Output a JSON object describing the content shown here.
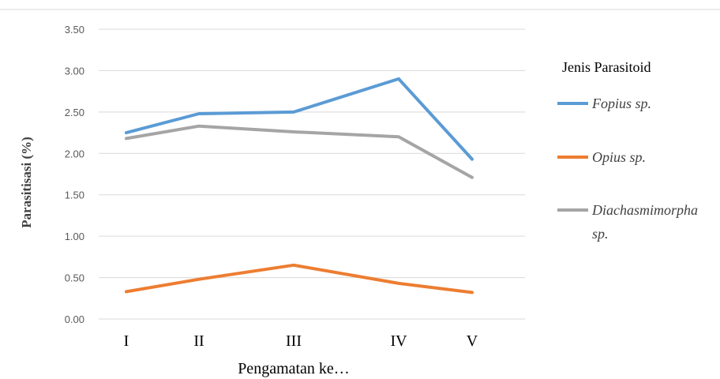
{
  "chart_data": {
    "type": "line",
    "categories": [
      "I",
      "II",
      "III",
      "IV",
      "V"
    ],
    "series": [
      {
        "name": "Fopius sp.",
        "values": [
          2.25,
          2.48,
          2.5,
          2.9,
          1.93
        ],
        "color": "#5b9bd5"
      },
      {
        "name": "Opius sp.",
        "values": [
          0.33,
          0.48,
          0.65,
          0.43,
          0.32
        ],
        "color": "#ed7d31"
      },
      {
        "name": "Diachasmimorpha sp.",
        "name_lines": [
          "Diachasmimorpha",
          "sp."
        ],
        "values": [
          2.18,
          2.33,
          2.26,
          2.2,
          1.71
        ],
        "color": "#a5a5a5"
      }
    ],
    "xlabel": "Pengamatan ke…",
    "ylabel": "Parasitisasi (%)",
    "ylim": [
      0,
      3.5
    ],
    "yticks": [
      "0.00",
      "0.50",
      "1.00",
      "1.50",
      "2.00",
      "2.50",
      "3.00",
      "3.50"
    ],
    "grid": true,
    "legend_title": "Jenis Parasitoid",
    "legend_position": "right"
  }
}
